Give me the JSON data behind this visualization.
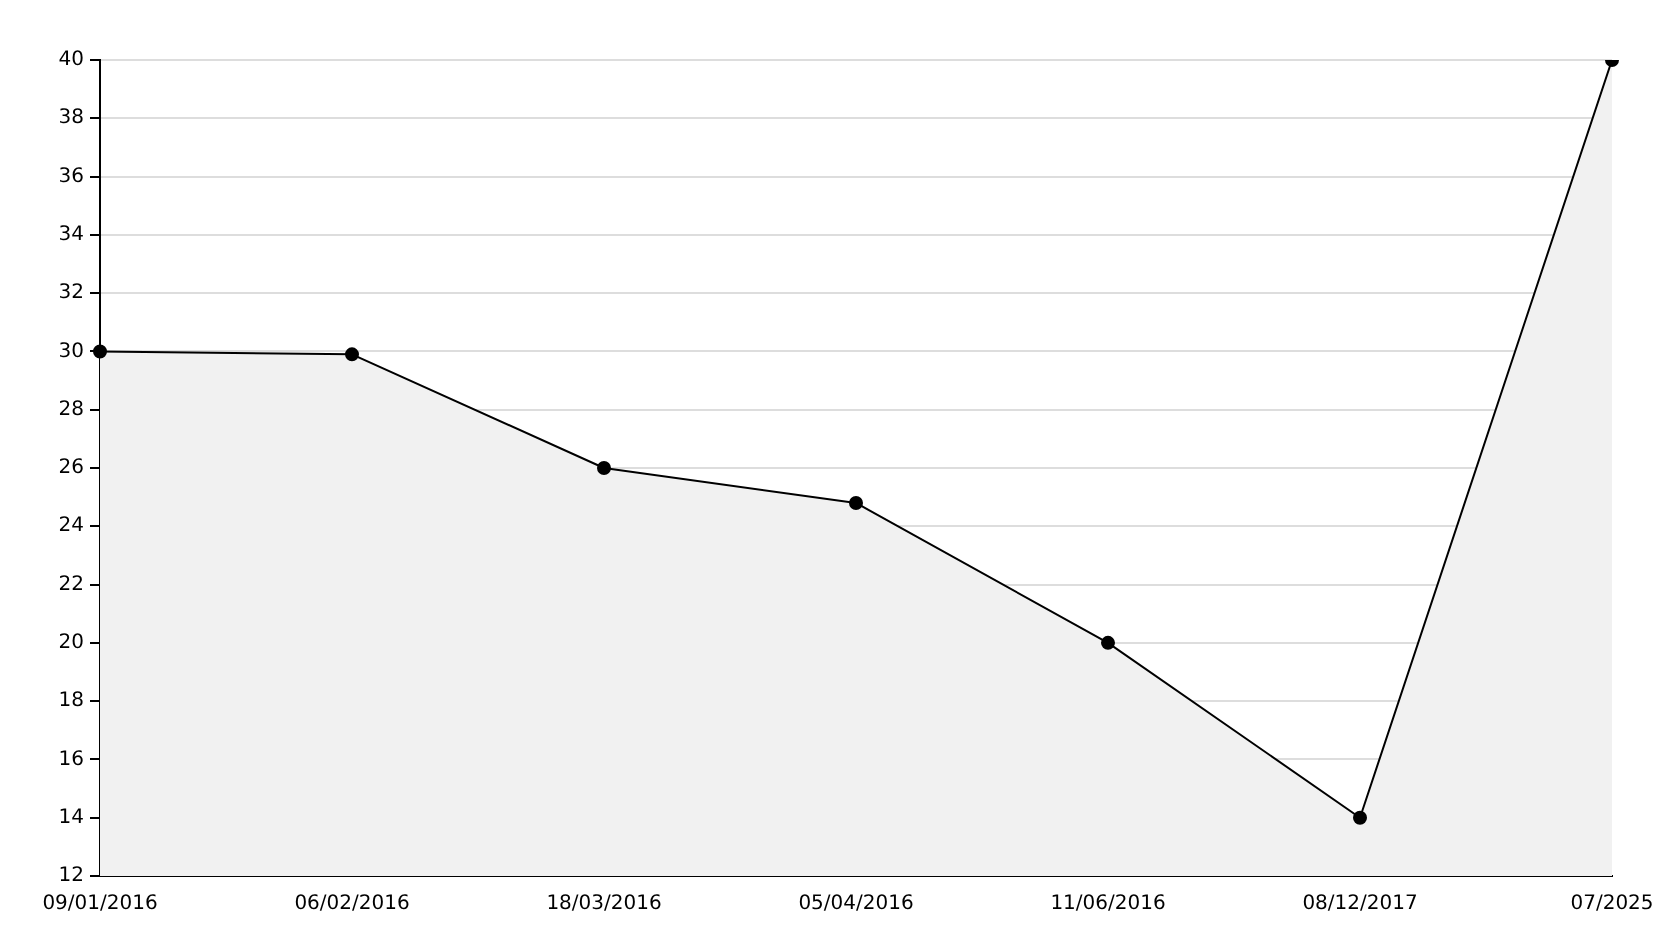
{
  "chart_data": {
    "type": "area",
    "categories": [
      "09/01/2016",
      "06/02/2016",
      "18/03/2016",
      "05/04/2016",
      "11/06/2016",
      "08/12/2017",
      "07/2025"
    ],
    "series": [
      {
        "color": "#000000",
        "values": [
          30,
          29.9,
          26,
          24.8,
          20,
          14,
          40
        ]
      }
    ],
    "ylim": [
      12,
      40
    ],
    "yticks": [
      12,
      14,
      16,
      18,
      20,
      22,
      24,
      26,
      28,
      30,
      32,
      34,
      36,
      38,
      40
    ],
    "grid": "y",
    "marker": "circle",
    "legend": false
  }
}
